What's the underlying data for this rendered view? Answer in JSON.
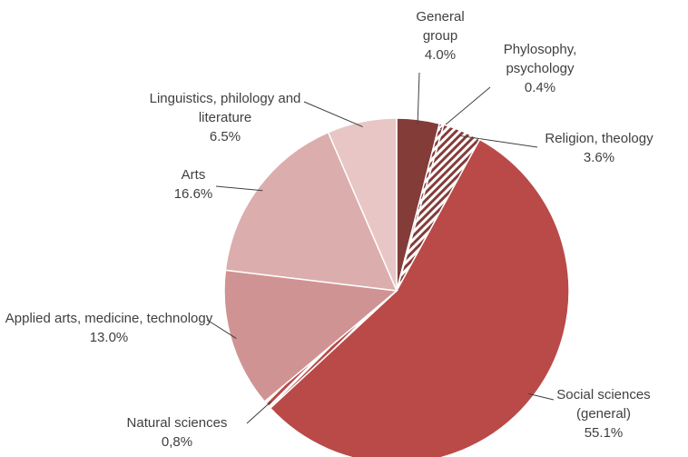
{
  "chart_data": {
    "type": "pie",
    "categories": [
      "General group",
      "Phylosophy, psychology",
      "Religion, theology",
      "Social sciences (general)",
      "Natural sciences",
      "Applied arts, medicine, technology",
      "Arts",
      "Linguistics, philology and literature"
    ],
    "values": [
      4.0,
      0.4,
      3.6,
      55.1,
      0.8,
      13.0,
      16.6,
      6.5
    ],
    "value_labels": [
      "4.0%",
      "0.4%",
      "3.6%",
      "55.1%",
      "0,8%",
      "13.0%",
      "16.6%",
      "6.5%"
    ],
    "colors": [
      "#843c39",
      "#843c39",
      "#843c39",
      "#b94a48",
      "#b94a48",
      "#d09393",
      "#dcadad",
      "#e8c6c6"
    ],
    "hatched": [
      false,
      true,
      true,
      false,
      true,
      false,
      false,
      false
    ]
  }
}
